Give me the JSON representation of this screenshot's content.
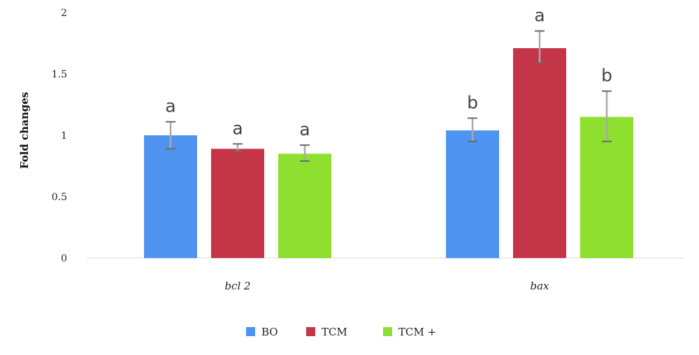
{
  "chart_data": {
    "type": "bar",
    "ylabel": "Fold changes",
    "ylim": [
      0,
      2
    ],
    "yticks": [
      "0",
      "0.5",
      "1",
      "1.5",
      "2"
    ],
    "categories": [
      "bcl 2",
      "bax"
    ],
    "series": [
      {
        "name": "BO",
        "color": "#4f94f0",
        "values": [
          1.0,
          1.04
        ],
        "err_low": [
          0.89,
          0.95
        ],
        "err_high": [
          1.11,
          1.14
        ],
        "letters": [
          "a",
          "b"
        ]
      },
      {
        "name": "TCM",
        "color": "#c53548",
        "values": [
          0.89,
          1.71
        ],
        "err_low": [
          0.87,
          1.59
        ],
        "err_high": [
          0.93,
          1.85
        ],
        "letters": [
          "a",
          "a"
        ]
      },
      {
        "name": "TCM +",
        "color": "#8edf2f",
        "values": [
          0.85,
          1.15
        ],
        "err_low": [
          0.79,
          0.95
        ],
        "err_high": [
          0.92,
          1.36
        ],
        "letters": [
          "a",
          "b"
        ]
      }
    ],
    "legend_position": "bottom",
    "grid": false
  }
}
